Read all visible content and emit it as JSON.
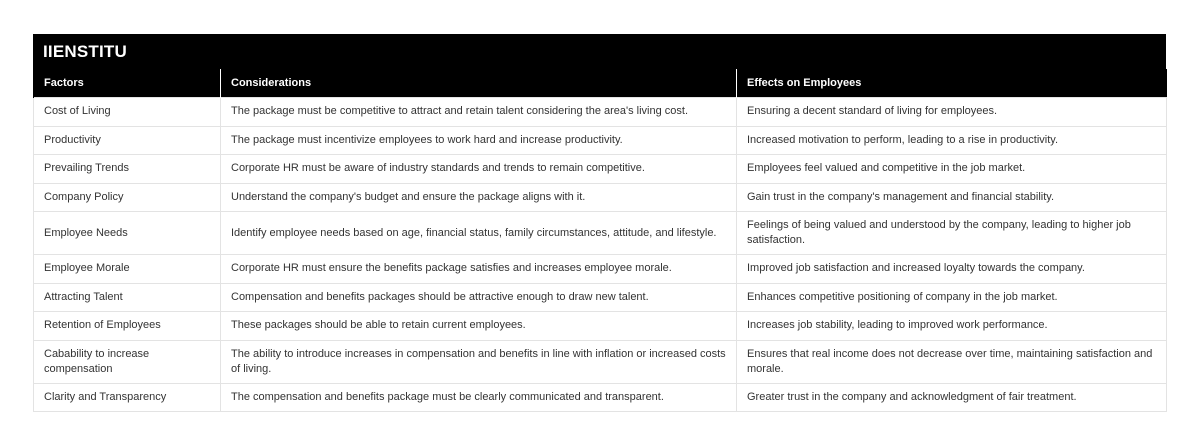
{
  "brand": "IIENSTITU",
  "table": {
    "headers": [
      "Factors",
      "Considerations",
      "Effects on Employees"
    ],
    "rows": [
      [
        "Cost of Living",
        "The package must be competitive to attract and retain talent considering the area's living cost.",
        "Ensuring a decent standard of living for employees."
      ],
      [
        "Productivity",
        "The package must incentivize employees to work hard and increase productivity.",
        "Increased motivation to perform, leading to a rise in productivity."
      ],
      [
        "Prevailing Trends",
        "Corporate HR must be aware of industry standards and trends to remain competitive.",
        "Employees feel valued and competitive in the job market."
      ],
      [
        "Company Policy",
        "Understand the company's budget and ensure the package aligns with it.",
        "Gain trust in the company's management and financial stability."
      ],
      [
        "Employee Needs",
        "Identify employee needs based on age, financial status, family circumstances, attitude, and lifestyle.",
        "Feelings of being valued and understood by the company, leading to higher job satisfaction."
      ],
      [
        "Employee Morale",
        "Corporate HR must ensure the benefits package satisfies and increases employee morale.",
        "Improved job satisfaction and increased loyalty towards the company."
      ],
      [
        "Attracting Talent",
        "Compensation and benefits packages should be attractive enough to draw new talent.",
        "Enhances competitive positioning of company in the job market."
      ],
      [
        "Retention of Employees",
        "These packages should be able to retain current employees.",
        "Increases job stability, leading to improved work performance."
      ],
      [
        "Cabability to increase compensation",
        "The ability to introduce increases in compensation and benefits in line with inflation or increased costs of living.",
        "Ensures that real income does not decrease over time, maintaining satisfaction and morale."
      ],
      [
        "Clarity and Transparency",
        "The compensation and benefits package must be clearly communicated and transparent.",
        "Greater trust in the company and acknowledgment of fair treatment."
      ]
    ]
  }
}
